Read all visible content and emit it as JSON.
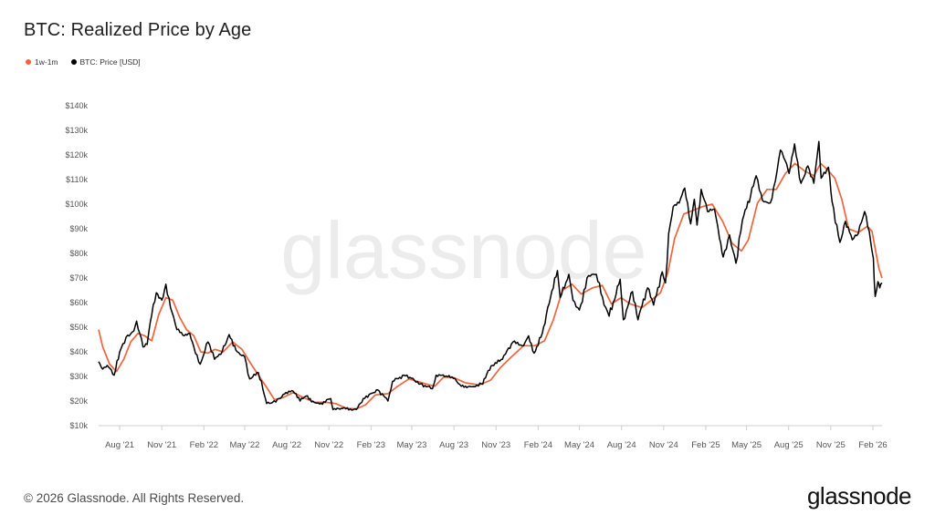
{
  "header": {
    "title": "BTC: Realized Price by Age"
  },
  "legend": [
    {
      "label": "1w-1m",
      "color": "#f0643c"
    },
    {
      "label": "BTC: Price [USD]",
      "color": "#000000"
    }
  ],
  "watermark": "glassnode",
  "footer": {
    "copyright": "© 2026 Glassnode. All Rights Reserved.",
    "logo": "glassnode"
  },
  "chart_data": {
    "type": "line",
    "title": "BTC: Realized Price by Age",
    "xlabel": "",
    "ylabel": "",
    "x_ticks": [
      "Aug '21",
      "Nov '21",
      "Feb '22",
      "May '22",
      "Aug '22",
      "Nov '22",
      "Feb '23",
      "May '23",
      "Aug '23",
      "Nov '23",
      "Feb '24",
      "May '24",
      "Aug '24",
      "Nov '24",
      "Feb '25",
      "May '25",
      "Aug '25",
      "Nov '25",
      "Feb '26"
    ],
    "y_ticks": [
      "$10k",
      "$20k",
      "$30k",
      "$40k",
      "$50k",
      "$60k",
      "$70k",
      "$80k",
      "$90k",
      "$100k",
      "$110k",
      "$120k",
      "$130k",
      "$140k"
    ],
    "ylim": [
      10000,
      140000
    ],
    "xlim": [
      "2021-06-16",
      "2026-02-21"
    ],
    "grid": false,
    "legend_position": "top-left",
    "series": [
      {
        "name": "BTC: Price [USD]",
        "color": "#000000",
        "points": [
          [
            "2021-06-16",
            36000
          ],
          [
            "2021-06-25",
            33000
          ],
          [
            "2021-07-05",
            34500
          ],
          [
            "2021-07-20",
            30500
          ],
          [
            "2021-08-01",
            40000
          ],
          [
            "2021-08-15",
            46000
          ],
          [
            "2021-09-01",
            48500
          ],
          [
            "2021-09-07",
            52500
          ],
          [
            "2021-09-21",
            42000
          ],
          [
            "2021-09-30",
            43000
          ],
          [
            "2021-10-10",
            55000
          ],
          [
            "2021-10-20",
            64000
          ],
          [
            "2021-11-01",
            61000
          ],
          [
            "2021-11-10",
            67500
          ],
          [
            "2021-11-20",
            58000
          ],
          [
            "2021-12-04",
            49000
          ],
          [
            "2021-12-20",
            46500
          ],
          [
            "2022-01-01",
            47500
          ],
          [
            "2022-01-10",
            42000
          ],
          [
            "2022-01-24",
            35000
          ],
          [
            "2022-02-10",
            44000
          ],
          [
            "2022-02-24",
            37000
          ],
          [
            "2022-03-10",
            39000
          ],
          [
            "2022-03-28",
            47000
          ],
          [
            "2022-04-15",
            40000
          ],
          [
            "2022-05-01",
            38000
          ],
          [
            "2022-05-12",
            29000
          ],
          [
            "2022-05-31",
            31500
          ],
          [
            "2022-06-13",
            22500
          ],
          [
            "2022-06-18",
            19000
          ],
          [
            "2022-07-01",
            19500
          ],
          [
            "2022-07-15",
            21000
          ],
          [
            "2022-07-30",
            23500
          ],
          [
            "2022-08-15",
            24000
          ],
          [
            "2022-08-30",
            20000
          ],
          [
            "2022-09-12",
            22000
          ],
          [
            "2022-09-30",
            19500
          ],
          [
            "2022-10-15",
            19100
          ],
          [
            "2022-11-05",
            21000
          ],
          [
            "2022-11-10",
            16500
          ],
          [
            "2022-12-01",
            17000
          ],
          [
            "2022-12-31",
            16500
          ],
          [
            "2023-01-15",
            21000
          ],
          [
            "2023-01-31",
            23000
          ],
          [
            "2023-02-16",
            24500
          ],
          [
            "2023-03-10",
            20000
          ],
          [
            "2023-03-20",
            28000
          ],
          [
            "2023-04-14",
            30500
          ],
          [
            "2023-04-30",
            29300
          ],
          [
            "2023-05-20",
            27000
          ],
          [
            "2023-06-15",
            25000
          ],
          [
            "2023-06-23",
            30500
          ],
          [
            "2023-07-15",
            30200
          ],
          [
            "2023-07-31",
            29200
          ],
          [
            "2023-08-17",
            26000
          ],
          [
            "2023-09-10",
            25800
          ],
          [
            "2023-09-30",
            27000
          ],
          [
            "2023-10-24",
            34500
          ],
          [
            "2023-11-15",
            37000
          ],
          [
            "2023-12-08",
            44000
          ],
          [
            "2023-12-31",
            42500
          ],
          [
            "2024-01-11",
            46500
          ],
          [
            "2024-01-23",
            39500
          ],
          [
            "2024-02-10",
            47500
          ],
          [
            "2024-02-28",
            62000
          ],
          [
            "2024-03-14",
            73000
          ],
          [
            "2024-03-20",
            62000
          ],
          [
            "2024-04-08",
            71500
          ],
          [
            "2024-04-17",
            61000
          ],
          [
            "2024-05-01",
            57000
          ],
          [
            "2024-05-21",
            71000
          ],
          [
            "2024-06-07",
            71500
          ],
          [
            "2024-06-24",
            59000
          ],
          [
            "2024-07-05",
            54500
          ],
          [
            "2024-07-29",
            69500
          ],
          [
            "2024-08-05",
            53000
          ],
          [
            "2024-08-25",
            64500
          ],
          [
            "2024-09-06",
            53000
          ],
          [
            "2024-09-27",
            66000
          ],
          [
            "2024-10-10",
            59000
          ],
          [
            "2024-10-29",
            72500
          ],
          [
            "2024-11-05",
            68000
          ],
          [
            "2024-11-12",
            88000
          ],
          [
            "2024-11-22",
            99000
          ],
          [
            "2024-12-05",
            100500
          ],
          [
            "2024-12-17",
            106500
          ],
          [
            "2024-12-30",
            92000
          ],
          [
            "2025-01-07",
            102000
          ],
          [
            "2025-01-13",
            91500
          ],
          [
            "2025-01-22",
            106000
          ],
          [
            "2025-02-05",
            97000
          ],
          [
            "2025-02-20",
            98000
          ],
          [
            "2025-03-03",
            86000
          ],
          [
            "2025-03-11",
            78500
          ],
          [
            "2025-03-25",
            87500
          ],
          [
            "2025-04-08",
            76000
          ],
          [
            "2025-04-22",
            93500
          ],
          [
            "2025-05-10",
            103500
          ],
          [
            "2025-05-22",
            111500
          ],
          [
            "2025-06-05",
            101500
          ],
          [
            "2025-06-22",
            100500
          ],
          [
            "2025-07-03",
            109500
          ],
          [
            "2025-07-14",
            122000
          ],
          [
            "2025-07-25",
            117500
          ],
          [
            "2025-08-02",
            112500
          ],
          [
            "2025-08-14",
            124500
          ],
          [
            "2025-08-28",
            108500
          ],
          [
            "2025-09-12",
            115500
          ],
          [
            "2025-09-25",
            108500
          ],
          [
            "2025-10-06",
            125500
          ],
          [
            "2025-10-11",
            110500
          ],
          [
            "2025-10-27",
            115000
          ],
          [
            "2025-11-04",
            101000
          ],
          [
            "2025-11-21",
            84500
          ],
          [
            "2025-12-03",
            93000
          ],
          [
            "2025-12-18",
            85500
          ],
          [
            "2025-12-31",
            88000
          ],
          [
            "2026-01-14",
            97000
          ],
          [
            "2026-01-24",
            89000
          ],
          [
            "2026-02-02",
            78000
          ],
          [
            "2026-02-06",
            62500
          ],
          [
            "2026-02-12",
            68500
          ],
          [
            "2026-02-16",
            66000
          ],
          [
            "2026-02-21",
            68000
          ]
        ]
      },
      {
        "name": "1w-1m",
        "color": "#f0643c",
        "points": [
          [
            "2021-06-16",
            49000
          ],
          [
            "2021-06-25",
            42000
          ],
          [
            "2021-07-10",
            35000
          ],
          [
            "2021-07-25",
            32000
          ],
          [
            "2021-08-10",
            37000
          ],
          [
            "2021-08-25",
            44000
          ],
          [
            "2021-09-10",
            47500
          ],
          [
            "2021-09-25",
            46500
          ],
          [
            "2021-10-10",
            44500
          ],
          [
            "2021-10-25",
            55000
          ],
          [
            "2021-11-10",
            62000
          ],
          [
            "2021-11-25",
            61000
          ],
          [
            "2021-12-10",
            54000
          ],
          [
            "2021-12-25",
            49000
          ],
          [
            "2022-01-10",
            46500
          ],
          [
            "2022-01-25",
            40000
          ],
          [
            "2022-02-10",
            39500
          ],
          [
            "2022-02-25",
            41000
          ],
          [
            "2022-03-15",
            40000
          ],
          [
            "2022-04-05",
            44000
          ],
          [
            "2022-04-25",
            41000
          ],
          [
            "2022-05-15",
            35000
          ],
          [
            "2022-05-31",
            30500
          ],
          [
            "2022-06-20",
            25000
          ],
          [
            "2022-07-05",
            20500
          ],
          [
            "2022-07-25",
            21500
          ],
          [
            "2022-08-15",
            23500
          ],
          [
            "2022-09-05",
            21500
          ],
          [
            "2022-09-30",
            19500
          ],
          [
            "2022-10-25",
            19500
          ],
          [
            "2022-11-15",
            19000
          ],
          [
            "2022-12-10",
            17000
          ],
          [
            "2022-12-31",
            16800
          ],
          [
            "2023-01-20",
            18500
          ],
          [
            "2023-02-10",
            22500
          ],
          [
            "2023-03-10",
            23000
          ],
          [
            "2023-03-31",
            26000
          ],
          [
            "2023-04-25",
            29000
          ],
          [
            "2023-05-31",
            27000
          ],
          [
            "2023-06-20",
            26000
          ],
          [
            "2023-07-10",
            29800
          ],
          [
            "2023-08-01",
            29500
          ],
          [
            "2023-08-25",
            27500
          ],
          [
            "2023-09-25",
            26500
          ],
          [
            "2023-10-20",
            28500
          ],
          [
            "2023-11-10",
            33500
          ],
          [
            "2023-12-05",
            38000
          ],
          [
            "2023-12-31",
            42500
          ],
          [
            "2024-01-25",
            42500
          ],
          [
            "2024-02-15",
            44500
          ],
          [
            "2024-03-05",
            53000
          ],
          [
            "2024-03-25",
            65000
          ],
          [
            "2024-04-15",
            67500
          ],
          [
            "2024-05-05",
            63500
          ],
          [
            "2024-05-30",
            66000
          ],
          [
            "2024-06-20",
            67000
          ],
          [
            "2024-07-10",
            59500
          ],
          [
            "2024-07-31",
            62000
          ],
          [
            "2024-08-20",
            59500
          ],
          [
            "2024-09-15",
            58000
          ],
          [
            "2024-10-05",
            61000
          ],
          [
            "2024-10-25",
            64000
          ],
          [
            "2024-11-10",
            72000
          ],
          [
            "2024-11-25",
            86000
          ],
          [
            "2024-12-15",
            96000
          ],
          [
            "2025-01-05",
            97500
          ],
          [
            "2025-01-25",
            99000
          ],
          [
            "2025-02-15",
            100000
          ],
          [
            "2025-03-10",
            93000
          ],
          [
            "2025-03-31",
            84000
          ],
          [
            "2025-04-20",
            81000
          ],
          [
            "2025-05-05",
            85500
          ],
          [
            "2025-05-25",
            100500
          ],
          [
            "2025-06-15",
            106000
          ],
          [
            "2025-07-05",
            106000
          ],
          [
            "2025-07-25",
            112500
          ],
          [
            "2025-08-15",
            116500
          ],
          [
            "2025-09-05",
            113500
          ],
          [
            "2025-09-25",
            111500
          ],
          [
            "2025-10-10",
            116500
          ],
          [
            "2025-10-25",
            114000
          ],
          [
            "2025-11-10",
            110500
          ],
          [
            "2025-11-25",
            102000
          ],
          [
            "2025-12-10",
            90000
          ],
          [
            "2025-12-31",
            88500
          ],
          [
            "2026-01-20",
            91000
          ],
          [
            "2026-01-30",
            89000
          ],
          [
            "2026-02-06",
            82000
          ],
          [
            "2026-02-14",
            74000
          ],
          [
            "2026-02-21",
            70000
          ]
        ]
      }
    ]
  }
}
